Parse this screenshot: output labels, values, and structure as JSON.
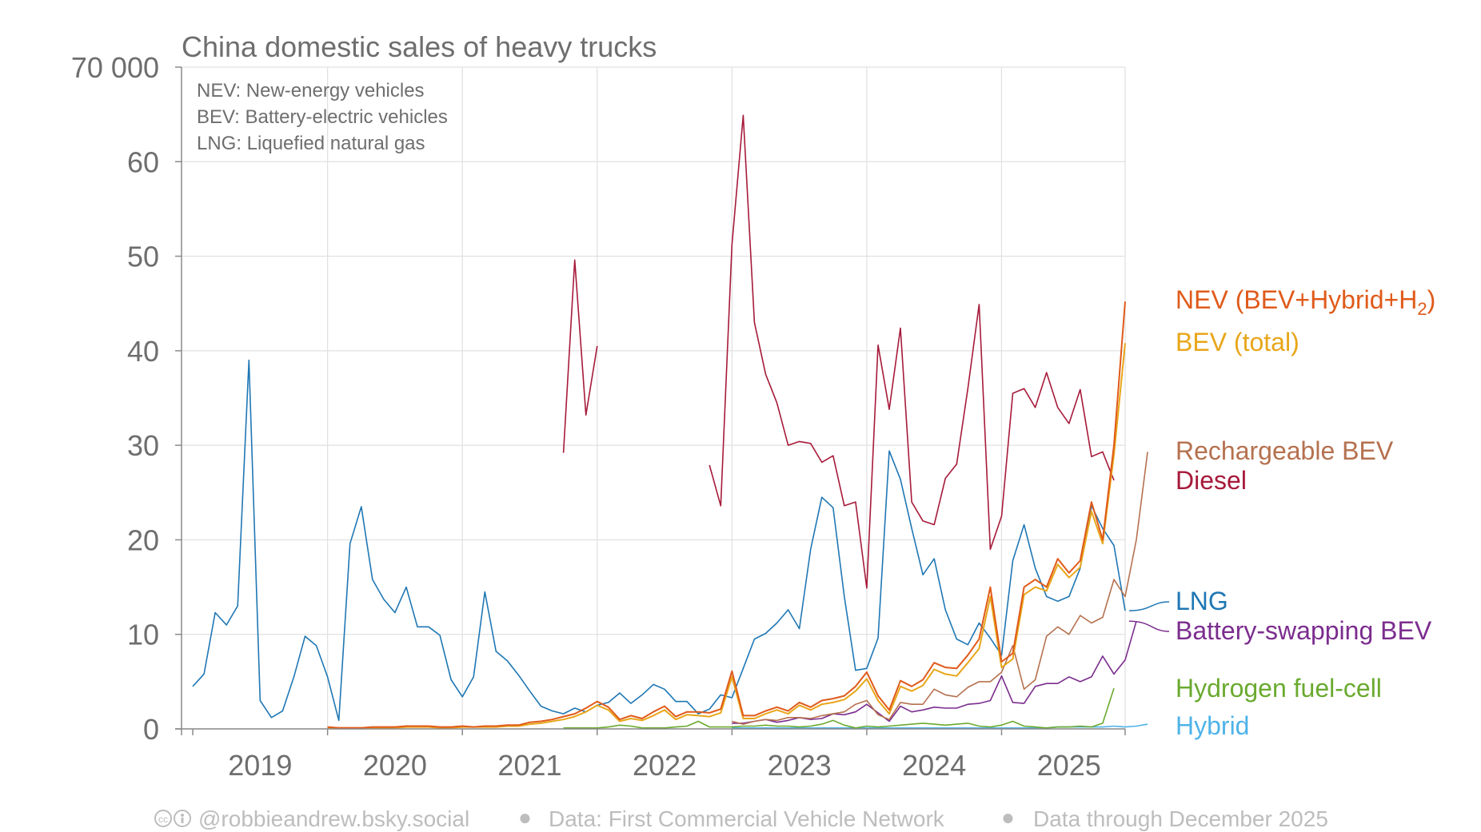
{
  "chart_data": {
    "type": "line",
    "title": "China domestic sales of heavy trucks",
    "y_top_label": "70 000",
    "ylim": [
      0,
      70
    ],
    "yticks": [
      0,
      10,
      20,
      30,
      40,
      50,
      60
    ],
    "years": [
      "2019",
      "2020",
      "2021",
      "2022",
      "2023",
      "2024",
      "2025"
    ],
    "notes": [
      "NEV: New-energy vehicles",
      "BEV: Battery-electric vehicles",
      "LNG: Liquefied natural gas"
    ],
    "x_start": "2018-12",
    "x_end": "2025-12",
    "series": [
      {
        "name": "NEV (BEV+Hybrid+H₂)",
        "color": "#e05a1a",
        "start": "2020-01",
        "values": [
          0.2,
          0.1,
          0.1,
          0.1,
          0.2,
          0.2,
          0.2,
          0.3,
          0.3,
          0.3,
          0.2,
          0.2,
          0.3,
          0.2,
          0.3,
          0.3,
          0.4,
          0.4,
          0.7,
          0.8,
          1.0,
          1.3,
          1.6,
          2.2,
          2.9,
          2.3,
          1.0,
          1.4,
          1.1,
          1.8,
          2.4,
          1.3,
          1.8,
          1.8,
          1.7,
          2.1,
          6.1,
          1.4,
          1.4,
          1.9,
          2.3,
          1.9,
          2.8,
          2.3,
          3.0,
          3.2,
          3.5,
          4.5,
          6.0,
          3.5,
          2.0,
          5.1,
          4.5,
          5.2,
          7.0,
          6.5,
          6.4,
          7.8,
          9.5,
          15.0,
          7.1,
          8.0,
          15.0,
          15.8,
          15.0,
          18.0,
          16.5,
          17.8,
          24.0,
          20.0,
          30.0,
          45.2
        ]
      },
      {
        "name": "BEV (total)",
        "color": "#e8a619",
        "start": "2020-01",
        "values": [
          0.1,
          0.1,
          0.1,
          0.1,
          0.1,
          0.1,
          0.1,
          0.2,
          0.2,
          0.2,
          0.1,
          0.1,
          0.2,
          0.2,
          0.2,
          0.2,
          0.3,
          0.3,
          0.5,
          0.6,
          0.8,
          1.0,
          1.3,
          1.8,
          2.5,
          2.0,
          0.8,
          1.1,
          0.9,
          1.4,
          2.0,
          1.0,
          1.5,
          1.4,
          1.3,
          1.7,
          5.5,
          1.1,
          1.1,
          1.6,
          2.0,
          1.6,
          2.5,
          2.0,
          2.6,
          2.8,
          3.1,
          4.0,
          5.3,
          3.0,
          1.6,
          4.5,
          4.0,
          4.6,
          6.3,
          5.8,
          5.6,
          7.0,
          8.5,
          14.0,
          6.5,
          7.4,
          14.2,
          15.0,
          14.6,
          17.4,
          16.0,
          17.1,
          23.0,
          19.6,
          29.0,
          40.8
        ]
      },
      {
        "name": "Rechargeable BEV",
        "color": "#b5714f",
        "start": "2023-01",
        "values": [
          0.8,
          0.5,
          0.8,
          1.0,
          0.9,
          1.2,
          1.2,
          1.1,
          1.4,
          1.6,
          1.8,
          2.6,
          3.0,
          1.5,
          1.0,
          2.8,
          2.6,
          2.6,
          4.2,
          3.6,
          3.4,
          4.4,
          5.0,
          5.0,
          6.0,
          8.8,
          4.2,
          5.2,
          9.8,
          10.8,
          10.0,
          12.0,
          11.2,
          11.8,
          15.8,
          14.0,
          20.0,
          29.3
        ]
      },
      {
        "name": "Diesel",
        "color": "#a61a3a",
        "start": "2021-10",
        "values": [
          29.2,
          49.6,
          33.2,
          40.5,
          null,
          null,
          null,
          null,
          null,
          null,
          null,
          null,
          null,
          27.9,
          23.6,
          51.2,
          64.9,
          43.0,
          37.5,
          34.5,
          30.0,
          30.4,
          30.2,
          28.2,
          28.9,
          23.6,
          24.0,
          14.9,
          40.6,
          33.8,
          42.4,
          24.0,
          22.0,
          21.6,
          26.5,
          28.0,
          36.0,
          44.9,
          19.0,
          22.5,
          35.5,
          36.0,
          34.0,
          37.7,
          34.0,
          32.3,
          35.9,
          28.8,
          29.3,
          26.3
        ]
      },
      {
        "name": "LNG",
        "color": "#1f77b4",
        "start": "2019-01",
        "values": [
          4.5,
          5.8,
          12.3,
          11.0,
          13.0,
          39.0,
          3.0,
          1.2,
          1.9,
          5.5,
          9.8,
          8.8,
          5.5,
          0.9,
          19.6,
          23.5,
          15.8,
          13.7,
          12.3,
          15.0,
          10.8,
          10.8,
          9.9,
          5.2,
          3.4,
          5.5,
          14.5,
          8.2,
          7.2,
          5.7,
          4.0,
          2.4,
          1.9,
          1.6,
          2.2,
          1.8,
          2.5,
          2.8,
          3.8,
          2.7,
          3.6,
          4.7,
          4.2,
          2.9,
          2.9,
          1.6,
          2.1,
          3.6,
          3.3,
          6.4,
          9.5,
          10.1,
          11.2,
          12.6,
          10.6,
          19.0,
          24.5,
          23.4,
          14.0,
          6.2,
          6.4,
          9.6,
          29.4,
          26.4,
          21.2,
          16.3,
          18.0,
          12.6,
          9.5,
          8.9,
          11.2,
          9.6,
          7.8,
          17.8,
          21.6,
          17.0,
          14.0,
          13.5,
          14.0,
          17.0,
          23.6,
          21.2,
          19.4,
          12.5
        ]
      },
      {
        "name": "Battery-swapping BEV",
        "color": "#7b2d8e",
        "start": "2023-01",
        "values": [
          0.6,
          0.6,
          0.8,
          1.0,
          0.7,
          0.9,
          1.2,
          1.0,
          1.1,
          1.6,
          1.5,
          1.8,
          2.6,
          1.7,
          0.8,
          2.4,
          1.8,
          2.0,
          2.3,
          2.2,
          2.2,
          2.6,
          2.7,
          3.0,
          5.6,
          2.8,
          2.7,
          4.5,
          4.8,
          4.8,
          5.5,
          5.0,
          5.5,
          7.7,
          5.8,
          7.3,
          11.4
        ]
      },
      {
        "name": "Hydrogen fuel-cell",
        "color": "#6aaa2f",
        "start": "2021-10",
        "values": [
          0.1,
          0.1,
          0.1,
          0.1,
          0.2,
          0.4,
          0.3,
          0.1,
          0.1,
          0.1,
          0.2,
          0.3,
          0.8,
          0.2,
          0.2,
          0.2,
          0.3,
          0.3,
          0.4,
          0.3,
          0.3,
          0.2,
          0.3,
          0.5,
          0.9,
          0.4,
          0.1,
          0.3,
          0.2,
          0.3,
          0.4,
          0.5,
          0.6,
          0.5,
          0.4,
          0.5,
          0.6,
          0.3,
          0.2,
          0.4,
          0.8,
          0.3,
          0.2,
          0.1,
          0.2,
          0.2,
          0.3,
          0.2,
          0.6,
          4.3
        ]
      },
      {
        "name": "Hybrid",
        "color": "#4fb3e8",
        "start": "2023-01",
        "values": [
          0.1,
          0.1,
          0.1,
          0.1,
          0.1,
          0.1,
          0.1,
          0.1,
          0.1,
          0.1,
          0.1,
          0.1,
          0.1,
          0.1,
          0.1,
          0.1,
          0.1,
          0.1,
          0.1,
          0.1,
          0.1,
          0.1,
          0.1,
          0.1,
          0.1,
          0.1,
          0.1,
          0.1,
          0.1,
          0.2,
          0.2,
          0.2,
          0.2,
          0.2,
          0.3,
          0.2,
          0.3,
          0.5
        ]
      }
    ],
    "legend": [
      {
        "label": "NEV (BEV+Hybrid+H",
        "sub": "2",
        "suffix": ")",
        "color": "#e05a1a"
      },
      {
        "label": "BEV (total)",
        "color": "#e8a619"
      },
      {
        "label": "Rechargeable BEV",
        "color": "#b5714f"
      },
      {
        "label": "Diesel",
        "color": "#a61a3a"
      },
      {
        "label": "LNG",
        "color": "#1f77b4"
      },
      {
        "label": "Battery-swapping BEV",
        "color": "#7b2d8e"
      },
      {
        "label": "Hydrogen fuel-cell",
        "color": "#6aaa2f"
      },
      {
        "label": "Hybrid",
        "color": "#4fb3e8"
      }
    ]
  },
  "footer": {
    "author": "@robbieandrew.bsky.social",
    "source": "Data: First Commercial Vehicle Network",
    "through": "Data through December 2025",
    "bullet": "●",
    "license_icon": "creative-commons-by-icon"
  }
}
